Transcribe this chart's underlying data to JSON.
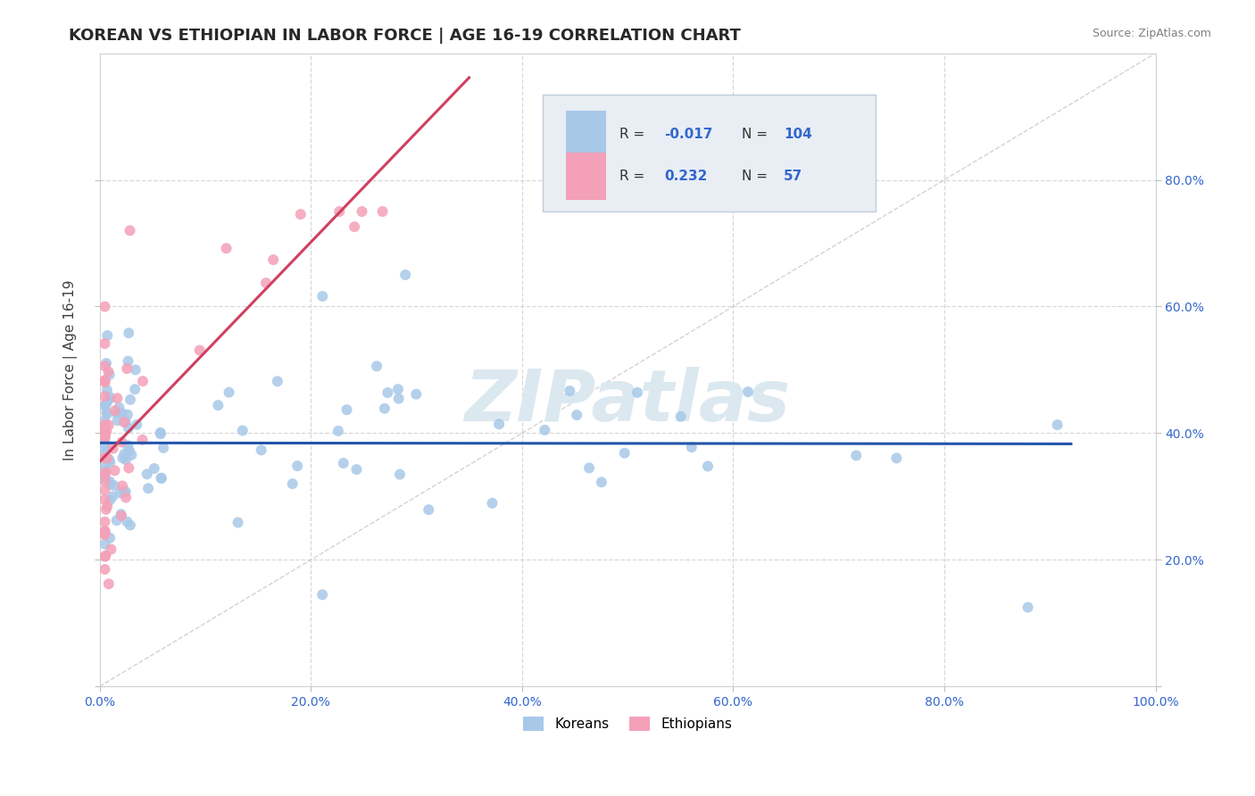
{
  "title": "KOREAN VS ETHIOPIAN IN LABOR FORCE | AGE 16-19 CORRELATION CHART",
  "source_text": "Source: ZipAtlas.com",
  "ylabel": "In Labor Force | Age 16-19",
  "korean_R": "-0.017",
  "korean_N": "104",
  "ethiopian_R": "0.232",
  "ethiopian_N": "57",
  "korean_color": "#a8c8e8",
  "ethiopian_color": "#f4a0b8",
  "korean_line_color": "#2255aa",
  "ethiopian_line_color": "#d04060",
  "diagonal_color": "#c8c8c8",
  "background_color": "#ffffff",
  "grid_color": "#d8d8d8",
  "title_color": "#282828",
  "watermark_text": "ZIPatlas",
  "watermark_color": "#dce8f0",
  "tick_color": "#3366cc",
  "source_color": "#808080",
  "ylabel_color": "#404040",
  "legend_box_color": "#e8eef4",
  "legend_edge_color": "#c0ccd8",
  "seed": 12345
}
